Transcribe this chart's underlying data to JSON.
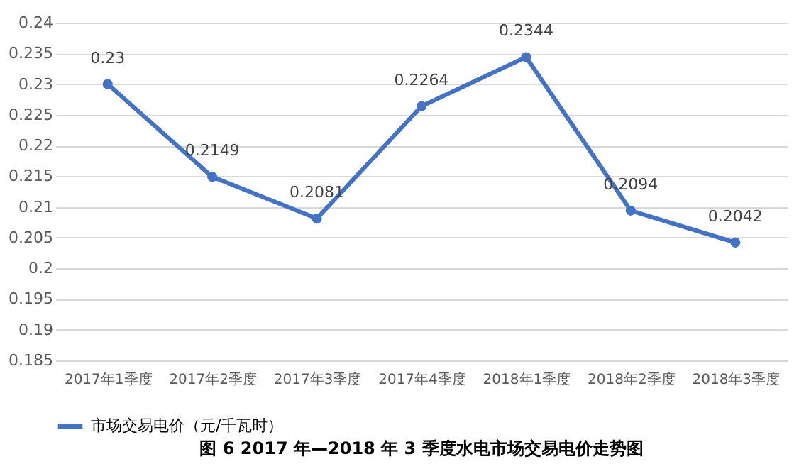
{
  "chart_data": {
    "type": "line",
    "title": "图 6 2017 年—2018 年 3 季度水电市场交易电价走势图",
    "categories": [
      "2017年1季度",
      "2017年2季度",
      "2017年3季度",
      "2017年4季度",
      "2018年1季度",
      "2018年2季度",
      "2018年3季度"
    ],
    "series": [
      {
        "name": "市场交易电价（元/千瓦时）",
        "color": "#4472c4",
        "values": [
          0.23,
          0.2149,
          0.2081,
          0.2264,
          0.2344,
          0.2094,
          0.2042
        ]
      }
    ],
    "ylim": [
      0.185,
      0.24
    ],
    "yticks": [
      0.185,
      0.19,
      0.195,
      0.2,
      0.205,
      0.21,
      0.215,
      0.22,
      0.225,
      0.23,
      0.235,
      0.24
    ],
    "grid": "y",
    "legend": "bottom",
    "marker": "circle",
    "line_style": "solid",
    "data_labels": true
  }
}
